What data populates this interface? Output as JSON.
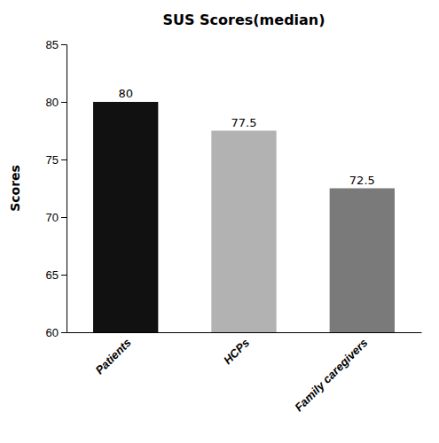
{
  "chart_data": {
    "type": "bar",
    "title": "SUS Scores(median)",
    "y_label": "Scores",
    "categories": [
      "Patients",
      "HCPs",
      "Family caregivers"
    ],
    "values": [
      80,
      77.5,
      72.5
    ],
    "colors": [
      "#111111",
      "#b2b2b2",
      "#7a7a7a"
    ],
    "ylim": [
      60,
      85
    ],
    "yticks": [
      60,
      65,
      70,
      75,
      80,
      85
    ],
    "grid": false,
    "data_labels": true
  }
}
